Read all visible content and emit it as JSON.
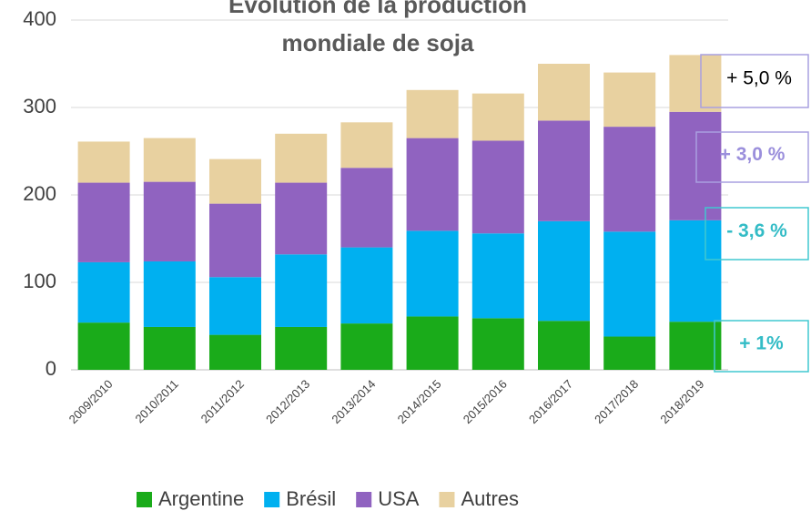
{
  "chart_data": {
    "type": "stacked_bar",
    "title": "Evolution de la production mondiale de soja",
    "categories": [
      "2009/2010",
      "2010/2011",
      "2011/2012",
      "2012/2013",
      "2013/2014",
      "2014/2015",
      "2015/2016",
      "2016/2017",
      "2017/2018",
      "2018/2019"
    ],
    "series": [
      {
        "name": "Argentine",
        "color": "#1aab1a",
        "values": [
          54,
          49,
          40,
          49,
          53,
          61,
          59,
          56,
          38,
          55
        ]
      },
      {
        "name": "Brésil",
        "color": "#00b0f0",
        "values": [
          69,
          75,
          66,
          83,
          87,
          98,
          97,
          114,
          120,
          116
        ]
      },
      {
        "name": "USA",
        "color": "#9063c0",
        "values": [
          91,
          91,
          84,
          82,
          91,
          106,
          106,
          115,
          120,
          124
        ]
      },
      {
        "name": "Autres",
        "color": "#e8d1a0",
        "values": [
          47,
          50,
          51,
          56,
          52,
          55,
          54,
          65,
          62,
          65
        ]
      }
    ],
    "ylim": [
      0,
      400
    ],
    "yticks": [
      0,
      100,
      200,
      300,
      400
    ],
    "grid": true,
    "annotations": [
      {
        "text": "+ 5,0 %",
        "color": "#000000",
        "border": "#a9a0e0"
      },
      {
        "text": "+ 3,0 %",
        "color": "#9b8fdc",
        "border": "#a9a0e0"
      },
      {
        "text": "- 3,6 %",
        "color": "#33bcc6",
        "border": "#40c8d0"
      },
      {
        "text": "+ 1%",
        "color": "#33bcc6",
        "border": "#40c8d0"
      }
    ]
  }
}
